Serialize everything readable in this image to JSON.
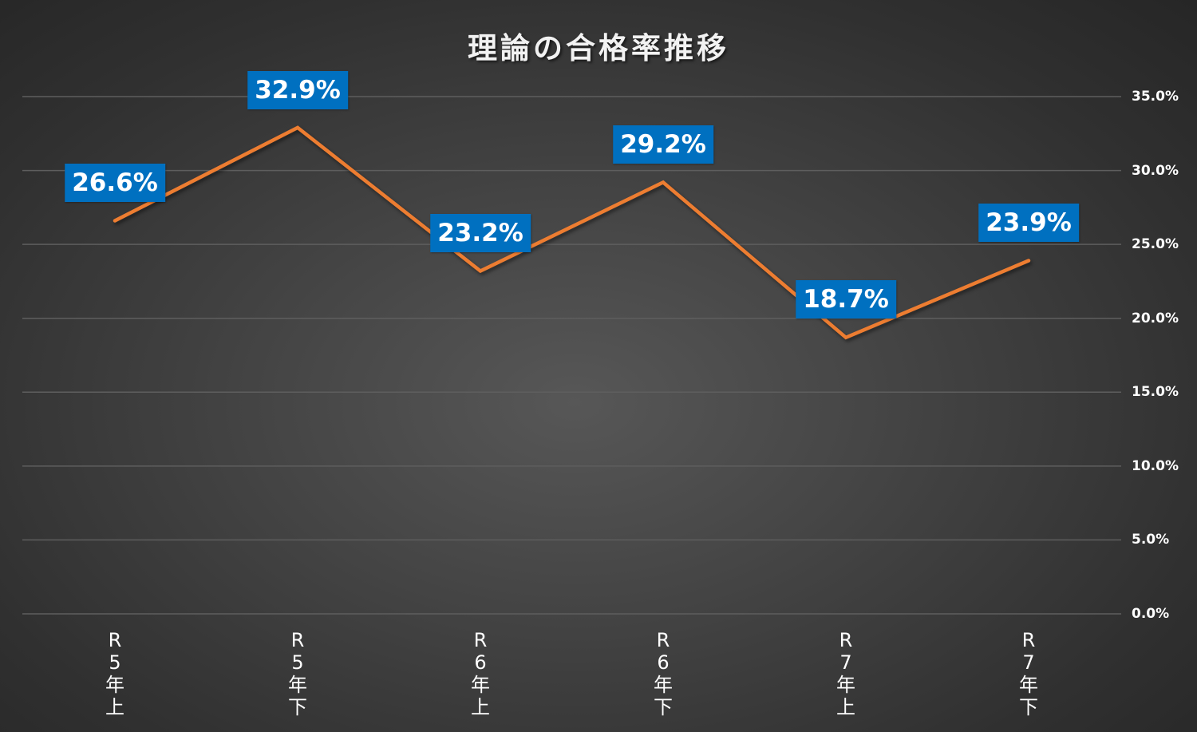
{
  "chart_data": {
    "type": "line",
    "title": "理論の合格率推移",
    "xlabel": "",
    "ylabel": "",
    "categories": [
      "R5年上",
      "R5年下",
      "R6年上",
      "R6年下",
      "R7年上",
      "R7年下"
    ],
    "category_labels_vertical": [
      "R\n5\n年\n上",
      "R\n5\n年\n下",
      "R\n6\n年\n上",
      "R\n6\n年\n下",
      "R\n7\n年\n上",
      "R\n7\n年\n下"
    ],
    "series": [
      {
        "name": "合格率",
        "values": [
          26.6,
          32.9,
          23.2,
          29.2,
          18.7,
          23.9
        ],
        "labels": [
          "26.6%",
          "32.9%",
          "23.2%",
          "29.2%",
          "18.7%",
          "23.9%"
        ],
        "color": "#ED7D31"
      }
    ],
    "ylim": [
      0,
      35
    ],
    "yticks": [
      "35.0%",
      "30.0%",
      "25.0%",
      "20.0%",
      "15.0%",
      "10.0%",
      "5.0%",
      "0.0%"
    ],
    "y_axis_position": "right",
    "grid": true,
    "legend": "none",
    "data_label_color": "#0070C0",
    "background": "#3a3a3a"
  }
}
